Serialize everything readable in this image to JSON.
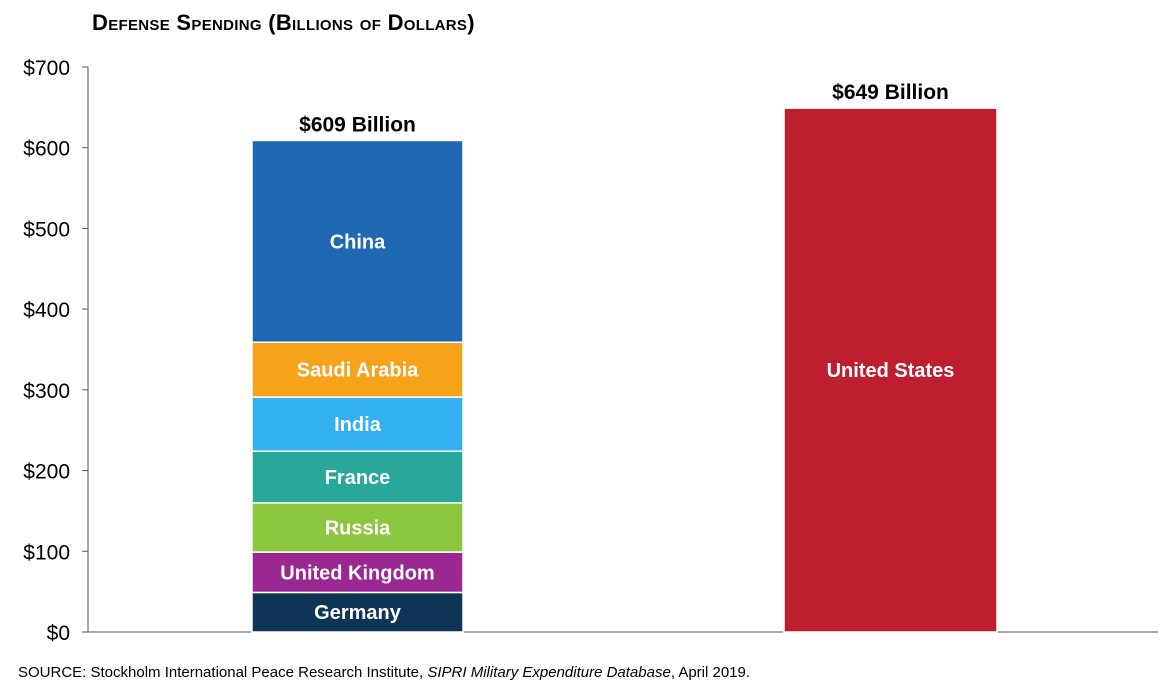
{
  "chart_data": {
    "type": "bar",
    "stacked": true,
    "title": "Defense Spending (Billions of Dollars)",
    "xlabel": "",
    "ylabel": "",
    "ylim": [
      0,
      700
    ],
    "yticks": [
      0,
      100,
      200,
      300,
      400,
      500,
      600,
      700
    ],
    "ytick_labels": [
      "$0",
      "$100",
      "$200",
      "$300",
      "$400",
      "$500",
      "$600",
      "$700"
    ],
    "grid": false,
    "legend": "none",
    "bars": [
      {
        "total_label": "$609 Billion",
        "total": 609,
        "segments": [
          {
            "name": "Germany",
            "value": 49,
            "color": "#0e3458"
          },
          {
            "name": "United Kingdom",
            "value": 50,
            "color": "#9b2793"
          },
          {
            "name": "Russia",
            "value": 61,
            "color": "#8dc63f"
          },
          {
            "name": "France",
            "value": 64,
            "color": "#2aa79b"
          },
          {
            "name": "India",
            "value": 67,
            "color": "#33b0ef"
          },
          {
            "name": "Saudi Arabia",
            "value": 68,
            "color": "#f6a21b"
          },
          {
            "name": "China",
            "value": 250,
            "color": "#1f67b1"
          }
        ]
      },
      {
        "total_label": "$649 Billion",
        "total": 649,
        "segments": [
          {
            "name": "United States",
            "value": 649,
            "color": "#bf1e2e"
          }
        ]
      }
    ]
  },
  "source": {
    "prefix": "SOURCE: Stockholm International Peace Research Institute, ",
    "italic": "SIPRI Military Expenditure Database",
    "suffix": ", April 2019."
  }
}
